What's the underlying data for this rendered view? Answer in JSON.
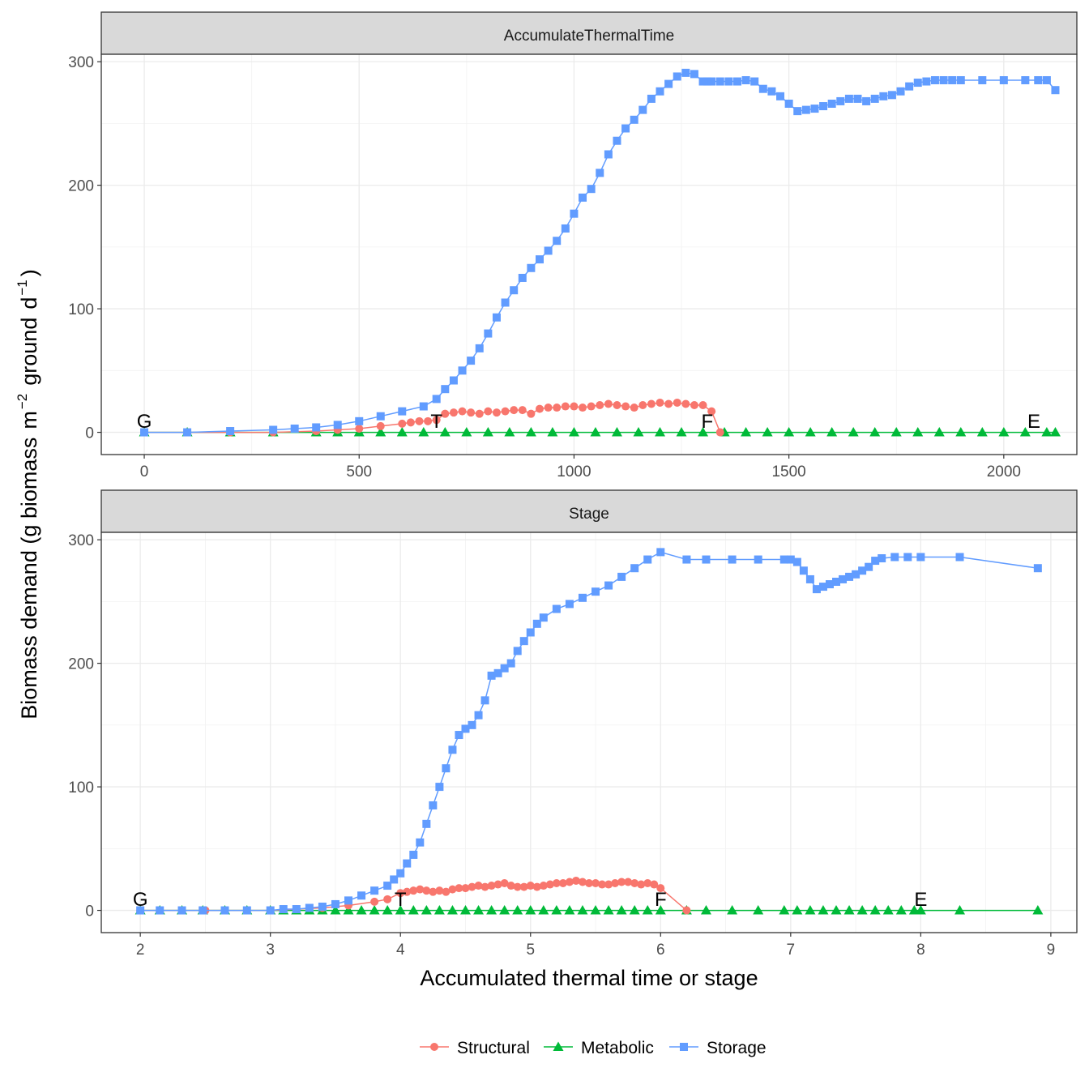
{
  "chart_data": {
    "type": "line",
    "ylabel_parts": {
      "main": "Biomass demand (g biomass",
      "m": "m",
      "m_exp": "−2",
      "ground": "ground",
      "d": "d",
      "d_exp": "−1",
      "close": ")"
    },
    "xlabel": "Accumulated thermal time or stage",
    "legend": {
      "position": "bottom",
      "entries": [
        {
          "name": "Structural",
          "color": "#F8766D",
          "shape": "circle"
        },
        {
          "name": "Metabolic",
          "color": "#00BA38",
          "shape": "triangle"
        },
        {
          "name": "Storage",
          "color": "#619CFF",
          "shape": "square"
        }
      ]
    },
    "panels": [
      {
        "strip": "AccumulateThermalTime",
        "xlim": [
          -100,
          2170
        ],
        "ylim": [
          -18,
          306
        ],
        "xticks": [
          0,
          500,
          1000,
          1500,
          2000
        ],
        "xtick_labels": [
          "0",
          "500",
          "1000",
          "1500",
          "2000"
        ],
        "yticks": [
          0,
          100,
          200,
          300
        ],
        "ytick_labels": [
          "0",
          "100",
          "200",
          "300"
        ],
        "stage_labels": [
          {
            "text": "G",
            "x": 0,
            "y": 5
          },
          {
            "text": "T",
            "x": 680,
            "y": 5
          },
          {
            "text": "F",
            "x": 1310,
            "y": 5
          },
          {
            "text": "E",
            "x": 2070,
            "y": 5
          }
        ],
        "series": {
          "Storage": {
            "x": [
              0,
              100,
              200,
              300,
              350,
              400,
              450,
              500,
              550,
              600,
              650,
              680,
              700,
              720,
              740,
              760,
              780,
              800,
              820,
              840,
              860,
              880,
              900,
              920,
              940,
              960,
              980,
              1000,
              1020,
              1040,
              1060,
              1080,
              1100,
              1120,
              1140,
              1160,
              1180,
              1200,
              1220,
              1240,
              1260,
              1280,
              1300,
              1310,
              1320,
              1340,
              1360,
              1380,
              1400,
              1420,
              1440,
              1460,
              1480,
              1500,
              1520,
              1540,
              1560,
              1580,
              1600,
              1620,
              1640,
              1660,
              1680,
              1700,
              1720,
              1740,
              1760,
              1780,
              1800,
              1820,
              1840,
              1860,
              1880,
              1900,
              1950,
              2000,
              2050,
              2080,
              2100,
              2120
            ],
            "y": [
              0,
              0,
              1,
              2,
              3,
              4,
              6,
              9,
              13,
              17,
              21,
              27,
              35,
              42,
              50,
              58,
              68,
              80,
              93,
              105,
              115,
              125,
              133,
              140,
              147,
              155,
              165,
              177,
              190,
              197,
              210,
              225,
              236,
              246,
              253,
              261,
              270,
              276,
              282,
              288,
              291,
              290,
              284,
              284,
              284,
              284,
              284,
              284,
              285,
              284,
              278,
              276,
              272,
              266,
              260,
              261,
              262,
              264,
              266,
              268,
              270,
              270,
              268,
              270,
              272,
              273,
              276,
              280,
              283,
              284,
              285,
              285,
              285,
              285,
              285,
              285,
              285,
              285,
              285,
              277
            ]
          },
          "Structural": {
            "x": [
              0,
              100,
              200,
              300,
              400,
              450,
              500,
              550,
              600,
              620,
              640,
              660,
              680,
              700,
              720,
              740,
              760,
              780,
              800,
              820,
              840,
              860,
              880,
              900,
              920,
              940,
              960,
              980,
              1000,
              1020,
              1040,
              1060,
              1080,
              1100,
              1120,
              1140,
              1160,
              1180,
              1200,
              1220,
              1240,
              1260,
              1280,
              1300,
              1320,
              1340
            ],
            "y": [
              0,
              0,
              0,
              0,
              1,
              2,
              3,
              5,
              7,
              8,
              9,
              9,
              10,
              15,
              16,
              17,
              16,
              15,
              17,
              16,
              17,
              18,
              18,
              15,
              19,
              20,
              20,
              21,
              21,
              20,
              21,
              22,
              23,
              22,
              21,
              20,
              22,
              23,
              24,
              23,
              24,
              23,
              22,
              22,
              17,
              0
            ]
          },
          "Metabolic": {
            "x": [
              0,
              100,
              200,
              300,
              400,
              450,
              500,
              550,
              600,
              650,
              700,
              750,
              800,
              850,
              900,
              950,
              1000,
              1050,
              1100,
              1150,
              1200,
              1250,
              1300,
              1350,
              1400,
              1450,
              1500,
              1550,
              1600,
              1650,
              1700,
              1750,
              1800,
              1850,
              1900,
              1950,
              2000,
              2050,
              2100,
              2120
            ],
            "y": [
              0,
              0,
              0,
              0,
              0,
              0,
              0,
              0,
              0,
              0,
              0,
              0,
              0,
              0,
              0,
              0,
              0,
              0,
              0,
              0,
              0,
              0,
              0,
              0,
              0,
              0,
              0,
              0,
              0,
              0,
              0,
              0,
              0,
              0,
              0,
              0,
              0,
              0,
              0,
              0
            ]
          }
        }
      },
      {
        "strip": "Stage",
        "xlim": [
          1.7,
          9.2
        ],
        "ylim": [
          -18,
          306
        ],
        "xticks": [
          2,
          3,
          4,
          5,
          6,
          7,
          8,
          9
        ],
        "xtick_labels": [
          "2",
          "3",
          "4",
          "5",
          "6",
          "7",
          "8",
          "9"
        ],
        "yticks": [
          0,
          100,
          200,
          300
        ],
        "ytick_labels": [
          "0",
          "100",
          "200",
          "300"
        ],
        "stage_labels": [
          {
            "text": "G",
            "x": 2.0,
            "y": 5
          },
          {
            "text": "T",
            "x": 4.0,
            "y": 5
          },
          {
            "text": "F",
            "x": 6.0,
            "y": 5
          },
          {
            "text": "E",
            "x": 8.0,
            "y": 5
          }
        ],
        "series": {
          "Storage": {
            "x": [
              2.0,
              2.15,
              2.32,
              2.48,
              2.65,
              2.82,
              3.0,
              3.1,
              3.2,
              3.3,
              3.4,
              3.5,
              3.6,
              3.7,
              3.8,
              3.9,
              3.95,
              4.0,
              4.05,
              4.1,
              4.15,
              4.2,
              4.25,
              4.3,
              4.35,
              4.4,
              4.45,
              4.5,
              4.55,
              4.6,
              4.65,
              4.7,
              4.75,
              4.8,
              4.85,
              4.9,
              4.95,
              5.0,
              5.05,
              5.1,
              5.2,
              5.3,
              5.4,
              5.5,
              5.6,
              5.7,
              5.8,
              5.9,
              6.0,
              6.2,
              6.35,
              6.55,
              6.75,
              6.95,
              7.0,
              7.05,
              7.1,
              7.15,
              7.2,
              7.25,
              7.3,
              7.35,
              7.4,
              7.45,
              7.5,
              7.55,
              7.6,
              7.65,
              7.7,
              7.8,
              7.9,
              8.0,
              8.3,
              8.9
            ],
            "y": [
              0,
              0,
              0,
              0,
              0,
              0,
              0,
              1,
              1,
              2,
              3,
              5,
              8,
              12,
              16,
              20,
              25,
              30,
              38,
              45,
              55,
              70,
              85,
              100,
              115,
              130,
              142,
              147,
              150,
              158,
              170,
              190,
              192,
              196,
              200,
              210,
              218,
              225,
              232,
              237,
              244,
              248,
              253,
              258,
              263,
              270,
              277,
              284,
              290,
              284,
              284,
              284,
              284,
              284,
              284,
              282,
              275,
              268,
              260,
              262,
              264,
              266,
              268,
              270,
              272,
              275,
              278,
              283,
              285,
              286,
              286,
              286,
              286,
              277
            ]
          },
          "Structural": {
            "x": [
              2.0,
              2.5,
              3.0,
              3.2,
              3.4,
              3.6,
              3.8,
              3.9,
              4.0,
              4.05,
              4.1,
              4.15,
              4.2,
              4.25,
              4.3,
              4.35,
              4.4,
              4.45,
              4.5,
              4.55,
              4.6,
              4.65,
              4.7,
              4.75,
              4.8,
              4.85,
              4.9,
              4.95,
              5.0,
              5.05,
              5.1,
              5.15,
              5.2,
              5.25,
              5.3,
              5.35,
              5.4,
              5.45,
              5.5,
              5.55,
              5.6,
              5.65,
              5.7,
              5.75,
              5.8,
              5.85,
              5.9,
              5.95,
              6.0,
              6.2
            ],
            "y": [
              0,
              0,
              0,
              1,
              2,
              4,
              7,
              9,
              14,
              15,
              16,
              17,
              16,
              15,
              16,
              15,
              17,
              18,
              18,
              19,
              20,
              19,
              20,
              21,
              22,
              20,
              19,
              19,
              20,
              19,
              20,
              21,
              22,
              22,
              23,
              24,
              23,
              22,
              22,
              21,
              21,
              22,
              23,
              23,
              22,
              21,
              22,
              21,
              18,
              0
            ]
          },
          "Metabolic": {
            "x": [
              2.0,
              2.15,
              2.32,
              2.48,
              2.65,
              2.82,
              3.0,
              3.1,
              3.2,
              3.3,
              3.4,
              3.5,
              3.6,
              3.7,
              3.8,
              3.9,
              4.0,
              4.1,
              4.2,
              4.3,
              4.4,
              4.5,
              4.6,
              4.7,
              4.8,
              4.9,
              5.0,
              5.1,
              5.2,
              5.3,
              5.4,
              5.5,
              5.6,
              5.7,
              5.8,
              5.9,
              6.0,
              6.2,
              6.35,
              6.55,
              6.75,
              6.95,
              7.05,
              7.15,
              7.25,
              7.35,
              7.45,
              7.55,
              7.65,
              7.75,
              7.85,
              7.95,
              8.0,
              8.3,
              8.9
            ],
            "y": [
              0,
              0,
              0,
              0,
              0,
              0,
              0,
              0,
              0,
              0,
              0,
              0,
              0,
              0,
              0,
              0,
              0,
              0,
              0,
              0,
              0,
              0,
              0,
              0,
              0,
              0,
              0,
              0,
              0,
              0,
              0,
              0,
              0,
              0,
              0,
              0,
              0,
              0,
              0,
              0,
              0,
              0,
              0,
              0,
              0,
              0,
              0,
              0,
              0,
              0,
              0,
              0,
              0,
              0,
              0
            ]
          }
        }
      }
    ]
  }
}
